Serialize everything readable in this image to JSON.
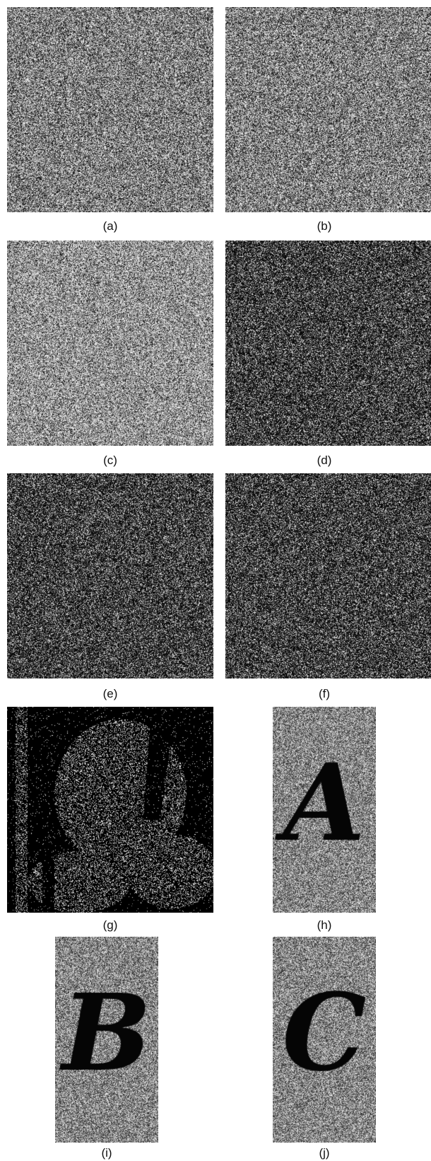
{
  "panels": [
    {
      "id": "a",
      "caption": "(a)",
      "content": "noise",
      "tone": "gray"
    },
    {
      "id": "b",
      "caption": "(b)",
      "content": "noise",
      "tone": "gray"
    },
    {
      "id": "c",
      "caption": "(c)",
      "content": "noise",
      "tone": "light"
    },
    {
      "id": "d",
      "caption": "(d)",
      "content": "noise",
      "tone": "dark"
    },
    {
      "id": "e",
      "caption": "(e)",
      "content": "noise",
      "tone": "dark"
    },
    {
      "id": "f",
      "caption": "(f)",
      "content": "noise",
      "tone": "dark"
    },
    {
      "id": "g",
      "caption": "(g)",
      "content": "revealed-image",
      "tone": "black-with-speckle"
    },
    {
      "id": "h",
      "caption": "(h)",
      "content": "letter",
      "letter": "A",
      "tone": "midgray"
    },
    {
      "id": "i",
      "caption": "(i)",
      "content": "letter",
      "letter": "B",
      "tone": "midgray"
    },
    {
      "id": "j",
      "caption": "(j)",
      "content": "letter",
      "letter": "C",
      "tone": "midgray"
    }
  ],
  "captions": {
    "a": "(a)",
    "b": "(b)",
    "c": "(c)",
    "d": "(d)",
    "e": "(e)",
    "f": "(f)",
    "g": "(g)",
    "h": "(h)",
    "i": "(i)",
    "j": "(j)"
  },
  "colors": {
    "background": "#ffffff",
    "caption_text": "#111111",
    "letter_fill": "#050505"
  }
}
